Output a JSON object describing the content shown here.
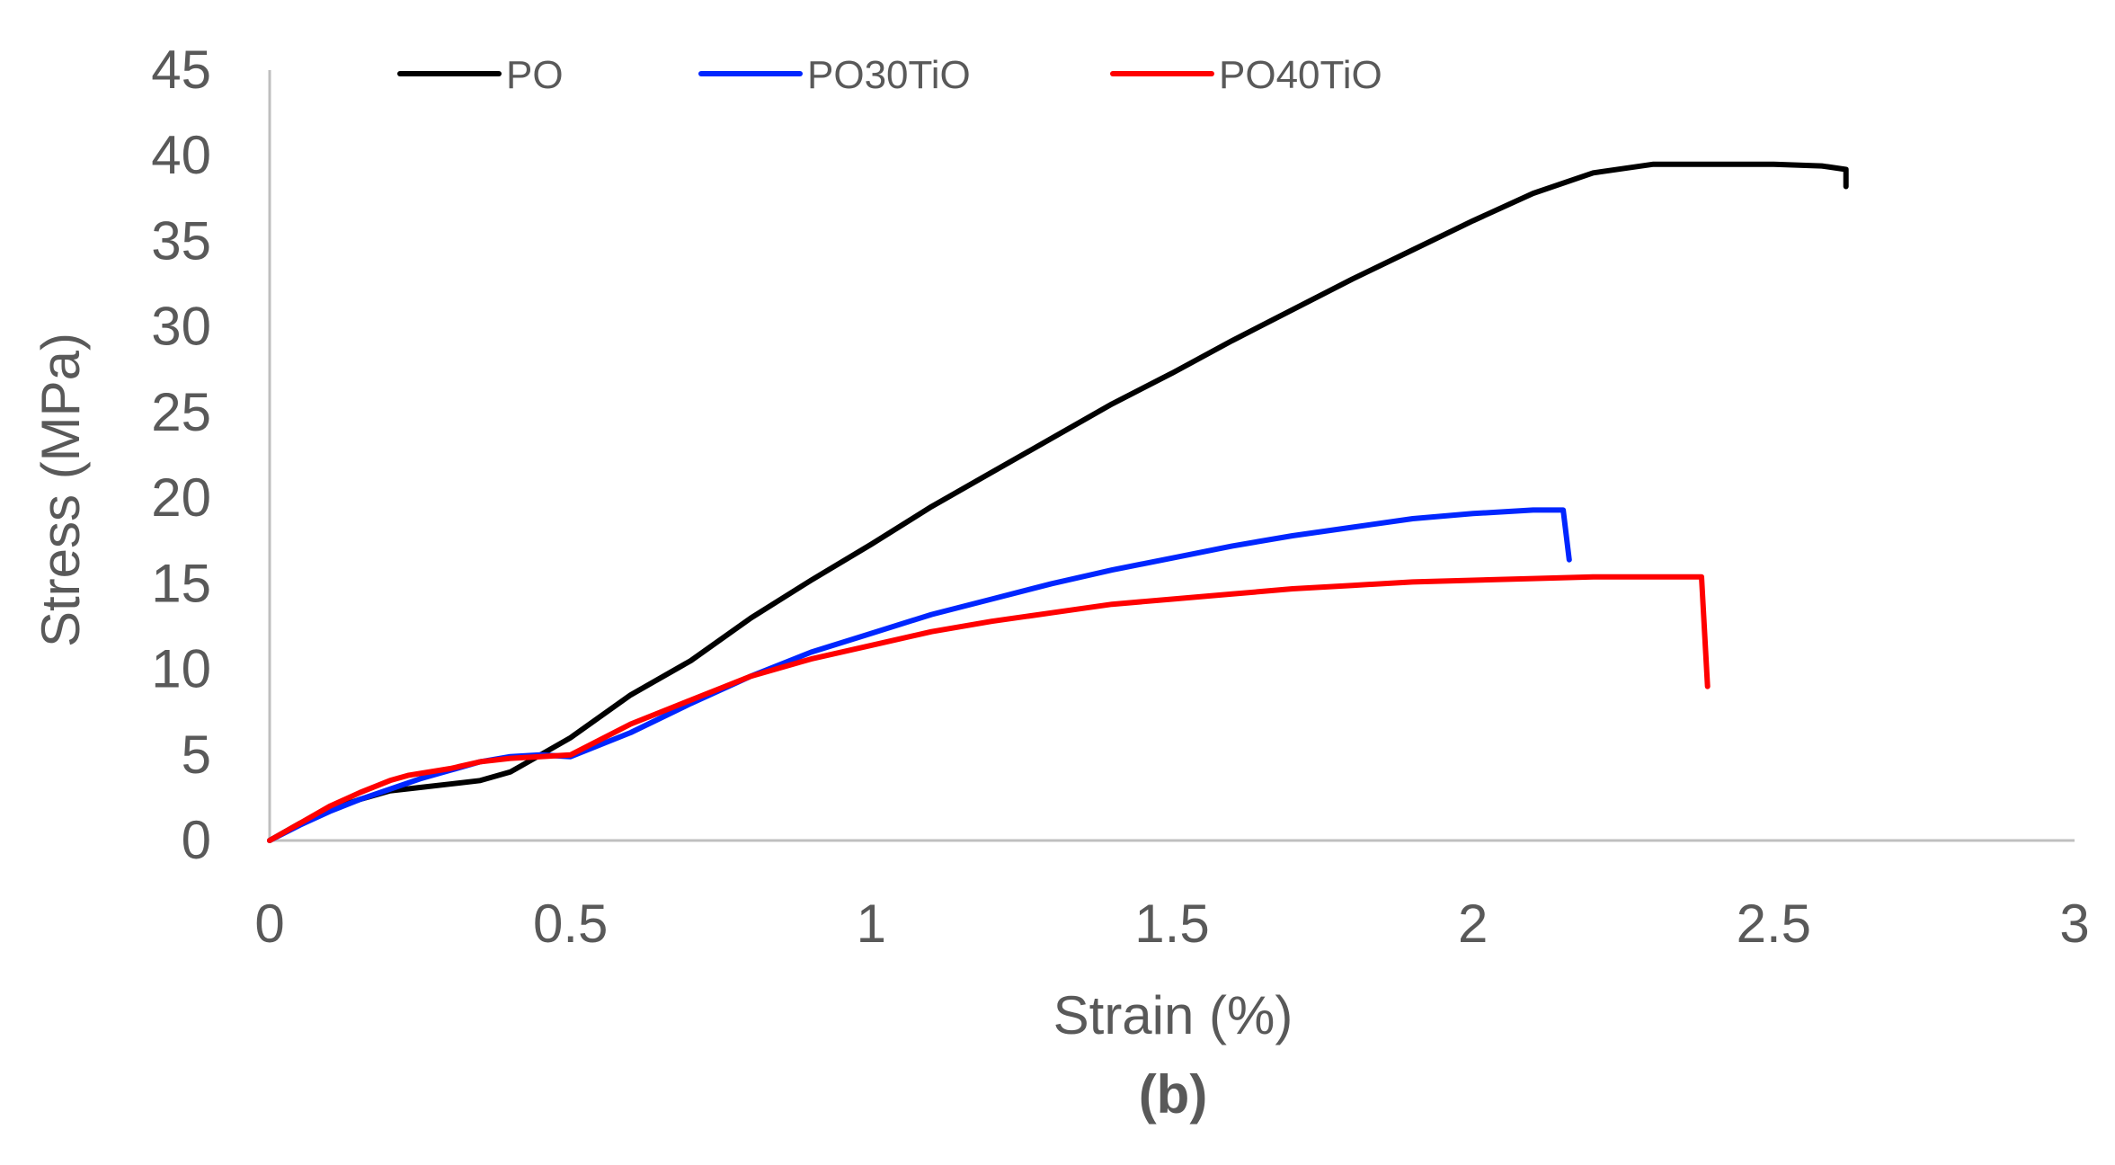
{
  "chart_data": {
    "type": "line",
    "title": "",
    "xlabel": "Strain (%)",
    "ylabel": "Stress (MPa)",
    "caption": {
      "open": "(",
      "letter": "b",
      "close": ")"
    },
    "xlim": [
      0,
      3
    ],
    "ylim": [
      0,
      45
    ],
    "x_ticks": [
      0,
      0.5,
      1,
      1.5,
      2,
      2.5,
      3
    ],
    "x_tick_labels": [
      "0",
      "0.5",
      "1",
      "1.5",
      "2",
      "2.5",
      "3"
    ],
    "y_ticks": [
      0,
      5,
      10,
      15,
      20,
      25,
      30,
      35,
      40,
      45
    ],
    "y_tick_labels": [
      "0",
      "5",
      "10",
      "15",
      "20",
      "25",
      "30",
      "35",
      "40",
      "45"
    ],
    "grid": false,
    "legend_position": "top",
    "series": [
      {
        "name": "PO",
        "color": "#000000",
        "x": [
          0,
          0.05,
          0.1,
          0.15,
          0.2,
          0.25,
          0.3,
          0.35,
          0.4,
          0.45,
          0.5,
          0.6,
          0.7,
          0.8,
          0.9,
          1.0,
          1.1,
          1.2,
          1.3,
          1.4,
          1.5,
          1.6,
          1.7,
          1.8,
          1.9,
          2.0,
          2.1,
          2.2,
          2.3,
          2.4,
          2.5,
          2.58,
          2.62,
          2.62
        ],
        "y": [
          0,
          1.0,
          1.8,
          2.4,
          2.9,
          3.1,
          3.3,
          3.5,
          4.0,
          5.0,
          6.0,
          8.5,
          10.5,
          13.0,
          15.2,
          17.3,
          19.5,
          21.5,
          23.5,
          25.5,
          27.3,
          29.2,
          31.0,
          32.8,
          34.5,
          36.2,
          37.8,
          39.0,
          39.5,
          39.5,
          39.5,
          39.4,
          39.2,
          38.2
        ]
      },
      {
        "name": "PO30TiO",
        "color": "#0026ff",
        "x": [
          0,
          0.05,
          0.1,
          0.15,
          0.2,
          0.25,
          0.3,
          0.35,
          0.4,
          0.45,
          0.5,
          0.6,
          0.7,
          0.8,
          0.9,
          1.0,
          1.1,
          1.2,
          1.3,
          1.4,
          1.5,
          1.6,
          1.7,
          1.8,
          1.9,
          2.0,
          2.1,
          2.15,
          2.16
        ],
        "y": [
          0,
          0.9,
          1.7,
          2.4,
          3.0,
          3.6,
          4.1,
          4.6,
          4.9,
          5.0,
          4.9,
          6.3,
          8.0,
          9.6,
          11.0,
          12.1,
          13.2,
          14.1,
          15.0,
          15.8,
          16.5,
          17.2,
          17.8,
          18.3,
          18.8,
          19.1,
          19.3,
          19.3,
          16.4
        ]
      },
      {
        "name": "PO40TiO",
        "color": "#ff0000",
        "x": [
          0,
          0.05,
          0.1,
          0.15,
          0.2,
          0.23,
          0.3,
          0.35,
          0.4,
          0.45,
          0.5,
          0.6,
          0.7,
          0.8,
          0.9,
          1.0,
          1.1,
          1.2,
          1.3,
          1.4,
          1.5,
          1.6,
          1.7,
          1.8,
          1.9,
          2.0,
          2.1,
          2.2,
          2.3,
          2.38,
          2.39
        ],
        "y": [
          0,
          1.0,
          2.0,
          2.8,
          3.5,
          3.8,
          4.2,
          4.6,
          4.8,
          4.9,
          5.0,
          6.8,
          8.2,
          9.6,
          10.6,
          11.4,
          12.2,
          12.8,
          13.3,
          13.8,
          14.1,
          14.4,
          14.7,
          14.9,
          15.1,
          15.2,
          15.3,
          15.4,
          15.4,
          15.4,
          9.0
        ]
      }
    ]
  }
}
